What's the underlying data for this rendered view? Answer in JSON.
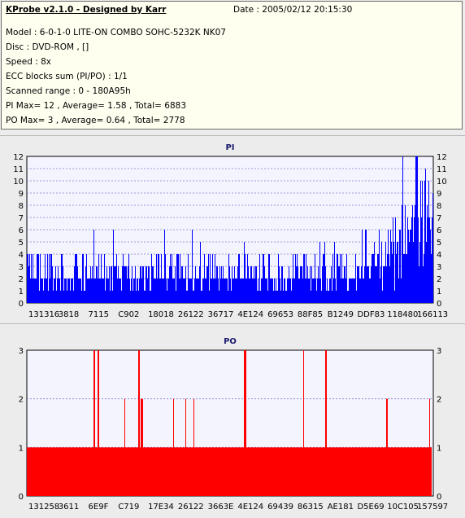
{
  "info": {
    "title": "KProbe v2.1.0 - Designed by Karr",
    "date": "Date : 2005/02/12 20:15:30",
    "lines": [
      "Model : 6-0-1-0 LITE-ON COMBO SOHC-5232K NK07",
      "Disc : DVD-ROM ,  []",
      "Speed : 8x",
      "ECC blocks sum (PI/PO) : 1/1",
      "Scanned range : 0 - 180A95h",
      "PI Max= 12 , Average= 1.58 , Total= 6883",
      "PO Max= 3 , Average= 0.64 , Total= 2778"
    ]
  },
  "chart_data": [
    {
      "type": "bar",
      "title": "PI",
      "color": "#0000ff",
      "ylim": [
        0,
        12
      ],
      "yticks": [
        0,
        1,
        2,
        3,
        4,
        5,
        6,
        7,
        8,
        9,
        10,
        11,
        12
      ],
      "xtick_labels": [
        "131316",
        "3818",
        "7115",
        "C902",
        "18018",
        "26122",
        "36717",
        "4E124",
        "69653",
        "88F85",
        "B1249",
        "DDF83",
        "118480",
        "166113"
      ],
      "max": 12,
      "average": 1.58,
      "grid": true
    },
    {
      "type": "bar",
      "title": "PO",
      "color": "#ff0000",
      "ylim": [
        0,
        3
      ],
      "yticks": [
        0,
        1,
        2,
        3
      ],
      "xtick_labels": [
        "131258",
        "3611",
        "6E9F",
        "C719",
        "17E34",
        "26122",
        "3663E",
        "4E124",
        "69439",
        "86315",
        "AE181",
        "D5E69",
        "10C105",
        "157597"
      ],
      "max": 3,
      "average": 0.64,
      "grid": true
    }
  ]
}
